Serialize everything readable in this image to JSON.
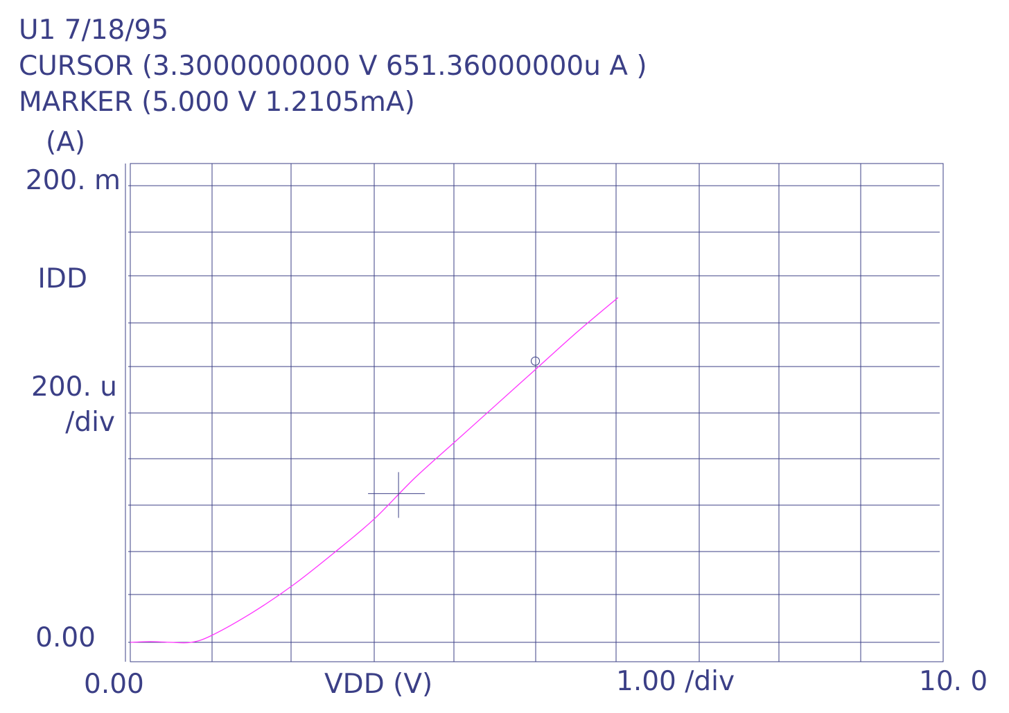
{
  "header": {
    "title": "U1 7/18/95",
    "cursor": "CURSOR (3.3000000000 V 651.36000000u A )",
    "marker": "MARKER (5.000 V 1.2105mA)"
  },
  "axes": {
    "y_unit": "(A)",
    "y_top": "200. m",
    "y_name": "IDD",
    "y_scale": "200. u",
    "y_per_div": "/div",
    "y_bottom": "0.00",
    "x_start": "0.00",
    "x_name": "VDD (V)",
    "x_scale": "1.00 /div",
    "x_end": "10. 0"
  },
  "colors": {
    "grid": "#3b3f86",
    "trace": "#ff33ff",
    "text": "#3b3f86",
    "background": "#ffffff"
  },
  "chart_data": {
    "type": "line",
    "title": "U1 7/18/95",
    "xlabel": "VDD (V)",
    "ylabel": "IDD",
    "xlim": [
      0,
      10
    ],
    "ylim": [
      0,
      0.002
    ],
    "grid": true,
    "series": [
      {
        "color": "#ff33ff",
        "x": [
          0,
          0.25,
          0.5,
          0.75,
          1.0,
          1.5,
          2.0,
          2.5,
          3.0,
          3.5,
          4.0,
          4.5,
          5.0,
          5.5,
          6.0
        ],
        "y": [
          0.0,
          3e-06,
          0.0,
          0.0,
          3e-05,
          0.00013,
          0.00025,
          0.00039,
          0.00054,
          0.00072,
          0.00088,
          0.00104,
          0.0012,
          0.00136,
          0.00151
        ]
      }
    ],
    "cursor": {
      "x": 3.3,
      "y": 0.00065136
    },
    "marker": {
      "x": 5.0,
      "y": 0.0012105
    }
  }
}
